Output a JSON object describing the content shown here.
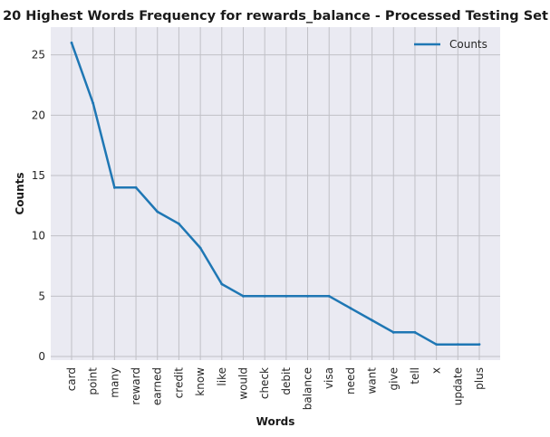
{
  "chart_data": {
    "type": "line",
    "title": "20 Highest Words Frequency for rewards_balance - Processed Testing Set",
    "xlabel": "Words",
    "ylabel": "Counts",
    "categories": [
      "card",
      "point",
      "many",
      "reward",
      "earned",
      "credit",
      "know",
      "like",
      "would",
      "check",
      "debit",
      "balance",
      "visa",
      "need",
      "want",
      "give",
      "tell",
      "x",
      "update",
      "plus"
    ],
    "series": [
      {
        "name": "Counts",
        "values": [
          26,
          21,
          14,
          14,
          12,
          11,
          9,
          6,
          5,
          5,
          5,
          5,
          5,
          4,
          3,
          2,
          2,
          1,
          1,
          1
        ]
      }
    ],
    "yticks": [
      0,
      5,
      10,
      15,
      20,
      25
    ],
    "ylim": [
      -0.3,
      27.3
    ],
    "grid": true,
    "legend": "top-right",
    "colors": {
      "line": "#1f77b4",
      "plot_bg": "#eaeaf2",
      "grid": "#c0c0c6"
    }
  }
}
